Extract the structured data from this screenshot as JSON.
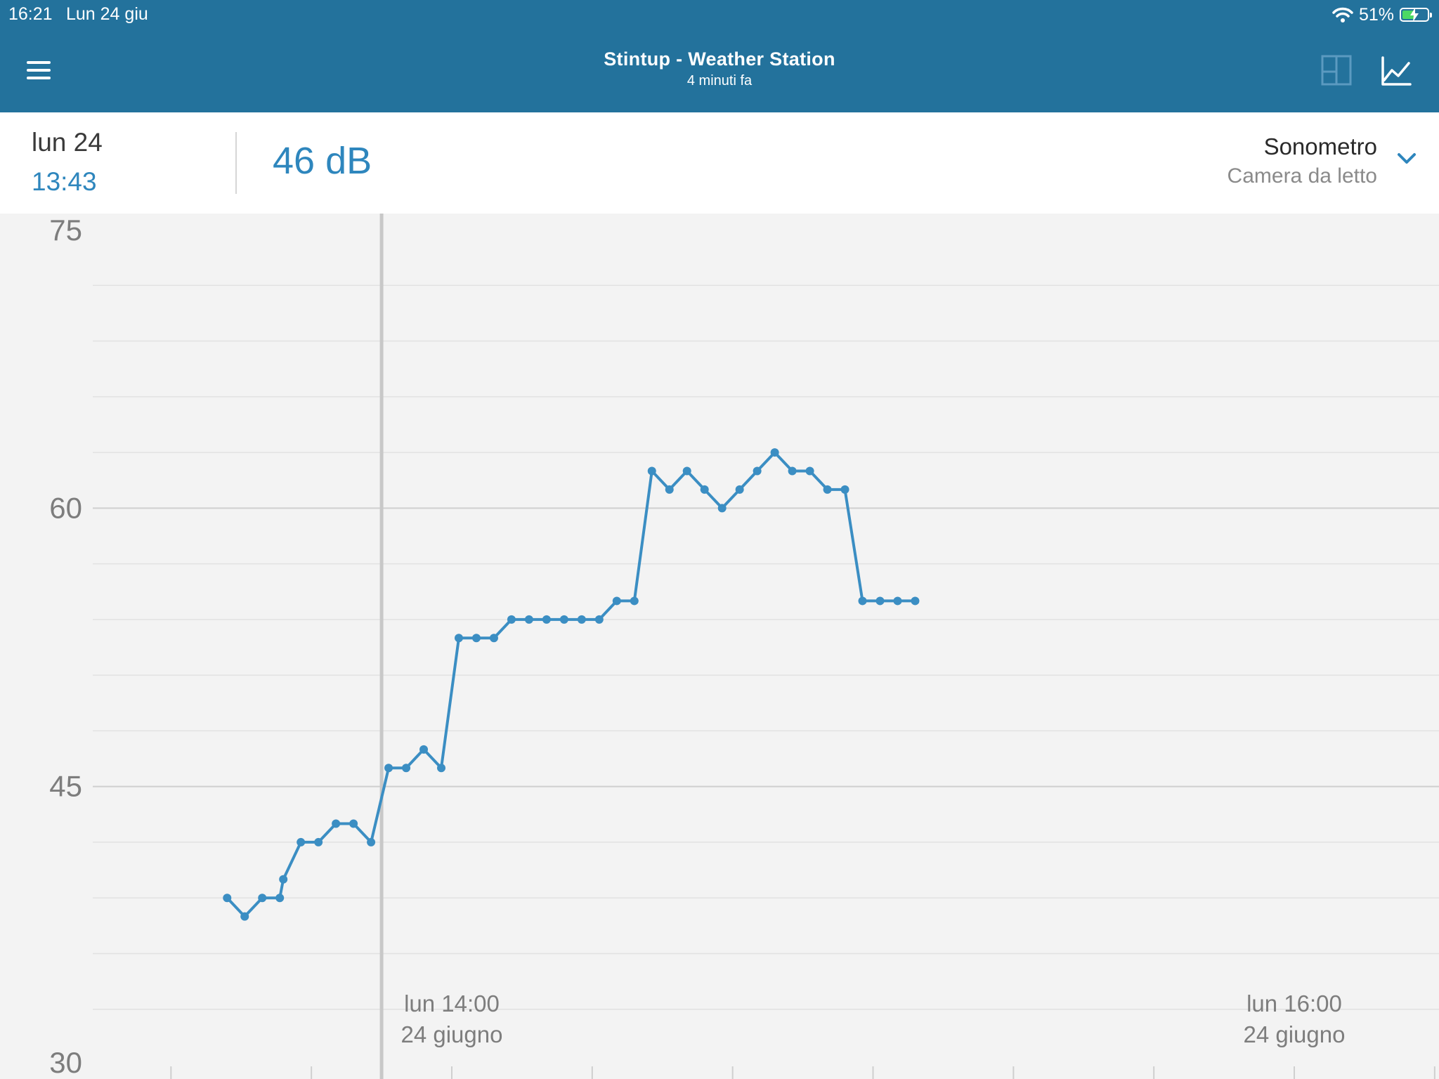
{
  "status_bar": {
    "time": "16:21",
    "date": "Lun 24 giu",
    "battery_percent": "51%",
    "battery_level": 0.51
  },
  "app_bar": {
    "title": "Stintup - Weather Station",
    "subtitle": "4 minuti fa",
    "menu_icon": "hamburger-menu-icon",
    "layout_icon": "layout-panels-icon",
    "chart_icon": "line-chart-icon"
  },
  "reading": {
    "day": "lun 24",
    "time": "13:43",
    "value": "46 dB"
  },
  "sensor": {
    "name": "Sonometro",
    "room": "Camera da letto"
  },
  "colors": {
    "header": "#23729c",
    "accent": "#2e86bd",
    "line": "#3b8ec3",
    "background": "#f3f3f3"
  },
  "chart_data": {
    "type": "line",
    "title": "",
    "xlabel": "",
    "ylabel": "",
    "ylim": [
      30,
      75
    ],
    "yticks": [
      30,
      45,
      60,
      75
    ],
    "grid": true,
    "x_labels": [
      {
        "time": "lun 14:00",
        "date": "24 giugno",
        "minutes": 840
      },
      {
        "time": "lun 16:00",
        "date": "24 giugno",
        "minutes": 960
      }
    ],
    "xlim_minutes": [
      808,
      965
    ],
    "cursor_minutes": 830,
    "series": [
      {
        "name": "",
        "x": [
          808,
          810.5,
          813,
          815.5,
          816,
          818.5,
          821,
          823.5,
          826,
          828.5,
          831,
          833.5,
          836,
          838.5,
          841,
          843.5,
          846,
          848.5,
          851,
          853.5,
          856,
          858.5,
          861,
          863.5,
          866,
          868.5,
          871,
          873.5,
          876,
          878.5,
          881,
          883.5,
          886,
          888.5,
          891,
          893.5,
          896,
          898.5,
          901,
          903.5,
          906
        ],
        "y": [
          39,
          38,
          39,
          39,
          40,
          42,
          42,
          43,
          43,
          42,
          46,
          46,
          47,
          46,
          53,
          53,
          53,
          54,
          54,
          54,
          54,
          54,
          54,
          55,
          55,
          62,
          61,
          62,
          61,
          60,
          61,
          62,
          63,
          62,
          62,
          61,
          61,
          55,
          55,
          55,
          55
        ]
      }
    ]
  }
}
